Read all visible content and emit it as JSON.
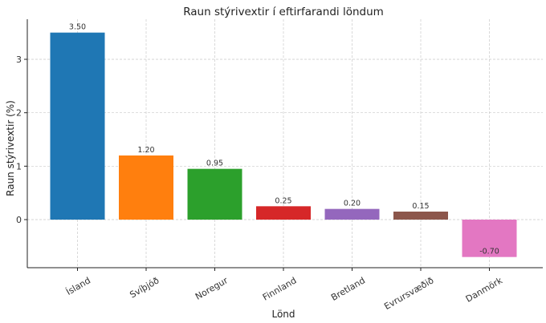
{
  "chart_data": {
    "type": "bar",
    "title": "Raun stýrivextir í eftirfarandi löndum",
    "xlabel": "Lönd",
    "ylabel": "Raun stýrivextir (%)",
    "categories": [
      "Ísland",
      "Svíþjóð",
      "Noregur",
      "Finnland",
      "Bretland",
      "Evrursvæðið",
      "Danmörk"
    ],
    "values": [
      3.5,
      1.2,
      0.95,
      0.25,
      0.2,
      0.15,
      -0.7
    ],
    "value_labels": [
      "3.50",
      "1.20",
      "0.95",
      "0.25",
      "0.20",
      "0.15",
      "-0.70"
    ],
    "colors": [
      "#1f77b4",
      "#ff7f0e",
      "#2ca02c",
      "#d62728",
      "#9467bd",
      "#8c564b",
      "#e377c2"
    ],
    "ylim": [
      -0.9,
      3.75
    ],
    "yticks": [
      0,
      1,
      2,
      3
    ],
    "ytick_labels": [
      "0",
      "1",
      "2",
      "3"
    ],
    "grid": true,
    "legend": false
  }
}
